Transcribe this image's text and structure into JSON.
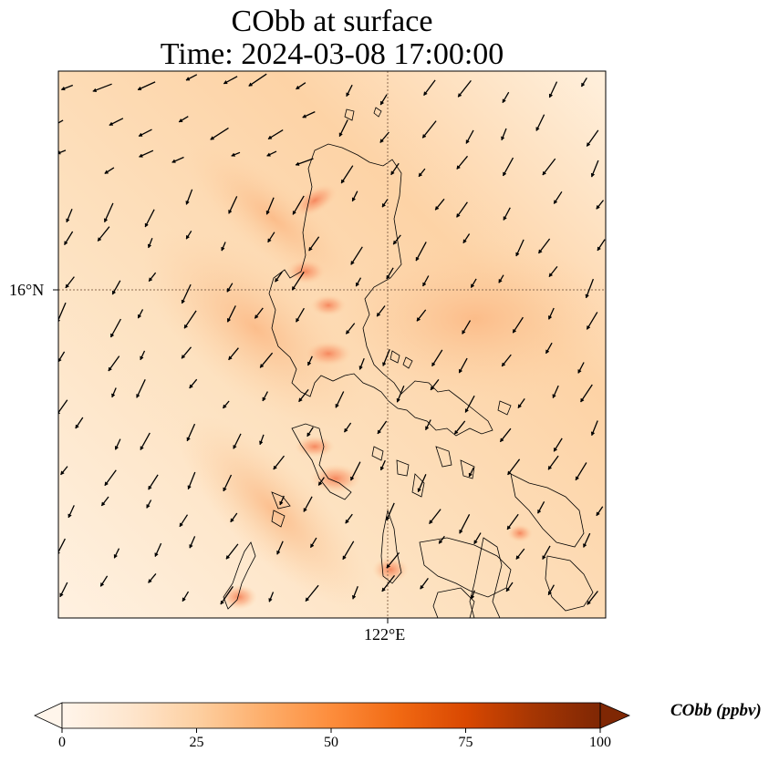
{
  "title": {
    "line1": "CObb at surface",
    "line2": "Time: 2024-03-08 17:00:00"
  },
  "axes": {
    "lat_label": "16°N",
    "lon_label": "122°E"
  },
  "colorbar": {
    "label": "CObb (ppbv)",
    "ticks": [
      "0",
      "25",
      "50",
      "75",
      "100"
    ],
    "min": 0,
    "max": 100,
    "extend": "both",
    "colormap": "Oranges",
    "colors": [
      "#fff5eb",
      "#fee6ce",
      "#fdd0a2",
      "#fdae6b",
      "#fd8d3c",
      "#f16913",
      "#d94801",
      "#a63603",
      "#7f2704"
    ]
  },
  "map": {
    "field": "CObb",
    "level": "surface",
    "background_color": "#fde3c4",
    "gridlines": "dotted",
    "coastline_color": "#000000",
    "wind_vectors": "northeasterly"
  }
}
